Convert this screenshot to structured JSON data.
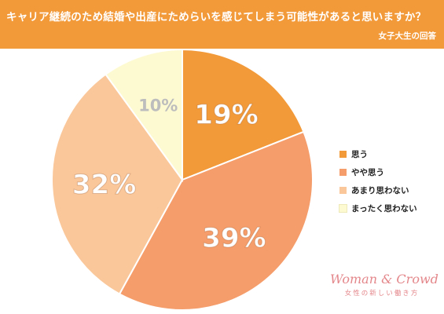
{
  "header": {
    "title": "キャリア継続のため結婚や出産にためらいを感じてしまう可能性があると思いますか？",
    "subtitle": "女子大生の回答"
  },
  "chart_data": {
    "type": "pie",
    "title": "キャリア継続のため結婚や出産にためらいを感じてしまう可能性があると思いますか？",
    "subtitle": "女子大生の回答",
    "start_angle_deg": 0,
    "direction": "clockwise",
    "legend_position": "right",
    "slices": [
      {
        "label": "思う",
        "value": 19,
        "display": "19%",
        "color": "#f29a3a",
        "text_color": "#ffffff"
      },
      {
        "label": "やや思う",
        "value": 39,
        "display": "39%",
        "color": "#f59d6b",
        "text_color": "#ffffff"
      },
      {
        "label": "あまり思わない",
        "value": 32,
        "display": "32%",
        "color": "#fac79a",
        "text_color": "#ffffff"
      },
      {
        "label": "まったく思わない",
        "value": 10,
        "display": "10%",
        "color": "#fdfad2",
        "text_color": "#bdbdbd"
      }
    ]
  },
  "brand": {
    "logo": "Woman & Crowd",
    "tagline": "女性の新しい働き方"
  }
}
